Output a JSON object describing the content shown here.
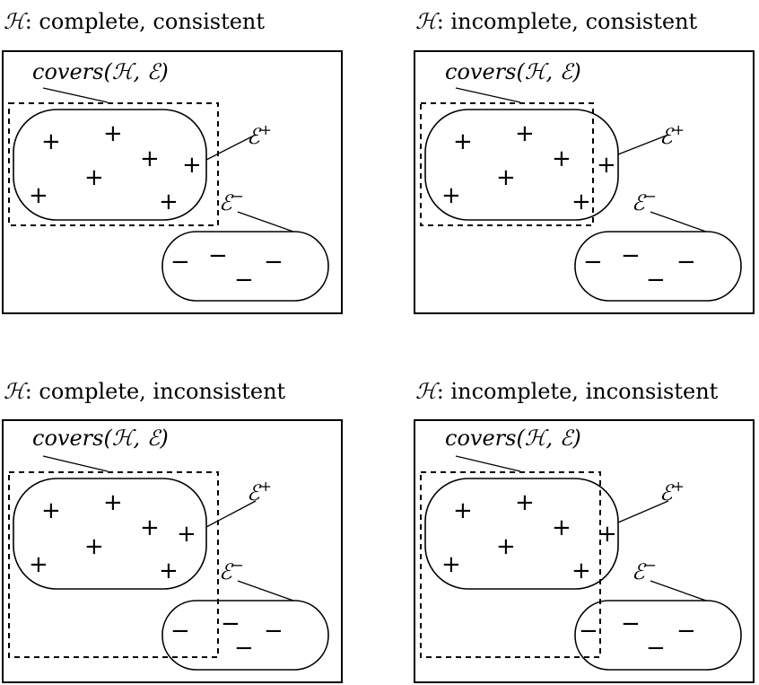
{
  "panels": [
    {
      "title_symbol": "ℋ",
      "title_text": ": complete, consistent",
      "cover_label": "covers(ℋ, ℰ)",
      "pos_label": "ℰ",
      "pos_sup": "+",
      "neg_label": "ℰ",
      "neg_sup": "−",
      "plus": "+",
      "minus": "−"
    },
    {
      "title_symbol": "ℋ",
      "title_text": ": incomplete, consistent",
      "cover_label": "covers(ℋ, ℰ)",
      "pos_label": "ℰ",
      "pos_sup": "+",
      "neg_label": "ℰ",
      "neg_sup": "−",
      "plus": "+",
      "minus": "−"
    },
    {
      "title_symbol": "ℋ",
      "title_text": ": complete, inconsistent",
      "cover_label": "covers(ℋ, ℰ)",
      "pos_label": "ℰ",
      "pos_sup": "+",
      "neg_label": "ℰ",
      "neg_sup": "−",
      "plus": "+",
      "minus": "−"
    },
    {
      "title_symbol": "ℋ",
      "title_text": ": incomplete, inconsistent",
      "cover_label": "covers(ℋ, ℰ)",
      "pos_label": "ℰ",
      "pos_sup": "+",
      "neg_label": "ℰ",
      "neg_sup": "−",
      "plus": "+",
      "minus": "−"
    }
  ]
}
